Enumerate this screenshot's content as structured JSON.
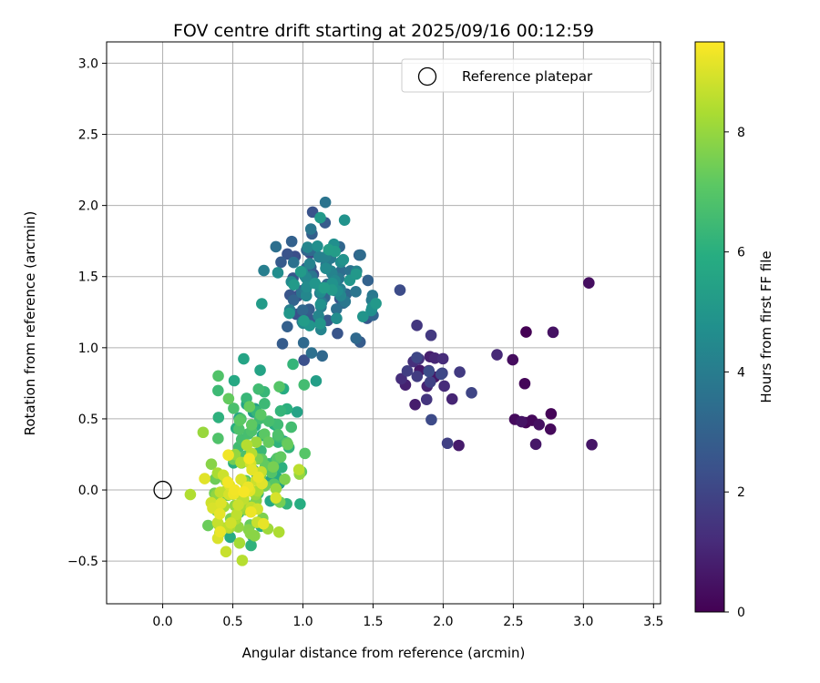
{
  "chart_data": {
    "type": "scatter",
    "title": "FOV centre drift starting at 2025/09/16 00:12:59",
    "xlabel": "Angular distance from reference (arcmin)",
    "ylabel": "Rotation from reference (arcmin)",
    "xlim": [
      -0.4,
      3.55
    ],
    "ylim": [
      -0.8,
      3.15
    ],
    "xticks": [
      "0.0",
      "0.5",
      "1.0",
      "1.5",
      "2.0",
      "2.5",
      "3.0",
      "3.5"
    ],
    "yticks": [
      "−0.5",
      "0.0",
      "0.5",
      "1.0",
      "1.5",
      "2.0",
      "2.5",
      "3.0"
    ],
    "grid": true,
    "legend": {
      "placement": "top-right",
      "entries": [
        "Reference platepar"
      ]
    },
    "reference_point": {
      "x": 0.0,
      "y": 0.0
    },
    "colorbar": {
      "label": "Hours from first FF file",
      "range": [
        0,
        9.5
      ],
      "ticks": [
        "0",
        "2",
        "4",
        "6",
        "8"
      ],
      "colormap": "viridis"
    },
    "clusters": [
      {
        "hours": [
          0.0,
          0.6
        ],
        "center": [
          2.75,
          0.75
        ],
        "spread": [
          0.18,
          0.32
        ],
        "count": 14
      },
      {
        "hours": [
          0.6,
          2.2
        ],
        "center": [
          1.95,
          0.82
        ],
        "spread": [
          0.15,
          0.2
        ],
        "count": 30
      },
      {
        "hours": [
          2.2,
          5.3
        ],
        "center": [
          1.15,
          1.45
        ],
        "spread": [
          0.16,
          0.22
        ],
        "count": 130
      },
      {
        "hours": [
          5.3,
          7.3
        ],
        "center": [
          0.72,
          0.35
        ],
        "spread": [
          0.16,
          0.28
        ],
        "count": 95
      },
      {
        "hours": [
          7.3,
          9.4
        ],
        "center": [
          0.55,
          -0.05
        ],
        "spread": [
          0.14,
          0.2
        ],
        "count": 100
      }
    ]
  }
}
